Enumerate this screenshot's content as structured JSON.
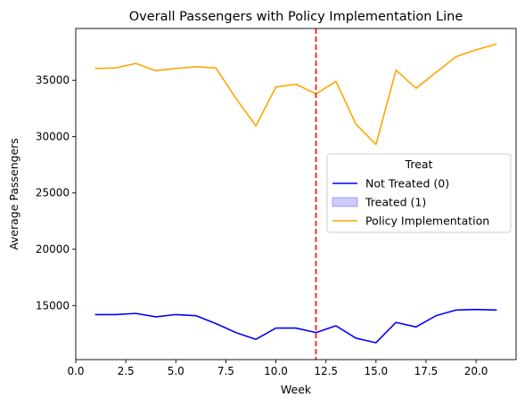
{
  "chart_data": {
    "type": "line",
    "title": "Overall Passengers with Policy Implementation Line",
    "xlabel": "Week",
    "ylabel": "Average Passengers",
    "xlim": [
      0,
      22
    ],
    "ylim": [
      10200,
      39600
    ],
    "xticks": [
      0,
      2.5,
      5,
      7.5,
      10,
      12.5,
      15,
      17.5,
      20
    ],
    "xtick_labels": [
      "0.0",
      "2.5",
      "5.0",
      "7.5",
      "10.0",
      "12.5",
      "15.0",
      "17.5",
      "20.0"
    ],
    "yticks": [
      15000,
      20000,
      25000,
      30000,
      35000
    ],
    "ytick_labels": [
      "15000",
      "20000",
      "25000",
      "30000",
      "35000"
    ],
    "x": [
      1,
      2,
      3,
      4,
      5,
      6,
      7,
      8,
      9,
      10,
      11,
      12,
      13,
      14,
      15,
      16,
      17,
      18,
      19,
      20,
      21
    ],
    "series": [
      {
        "name": "Not Treated (0)",
        "color": "#0000ff",
        "values": [
          14200,
          14200,
          14300,
          14000,
          14200,
          14100,
          13400,
          12600,
          12000,
          13000,
          13000,
          12600,
          13200,
          12100,
          11700,
          13500,
          13100,
          14100,
          14600,
          14650,
          14600
        ]
      },
      {
        "name": "Policy Implementation",
        "color": "#ffa500",
        "values": [
          36050,
          36100,
          36500,
          35850,
          36050,
          36200,
          36100,
          33400,
          30950,
          34400,
          34650,
          33800,
          34900,
          31100,
          29300,
          35900,
          34300,
          35700,
          37100,
          37700,
          38200
        ]
      }
    ],
    "policy_line": {
      "x": 12,
      "color": "#ff0000",
      "style": "dashed"
    },
    "legend": {
      "title": "Treat",
      "placement": "center-right",
      "entries": [
        {
          "label": "Not Treated (0)",
          "kind": "line",
          "color": "#0000ff"
        },
        {
          "label": "Treated (1)",
          "kind": "patch",
          "color": "#0000ff"
        },
        {
          "label": "Policy Implementation",
          "kind": "line",
          "color": "#ffa500"
        }
      ]
    },
    "grid": false
  }
}
